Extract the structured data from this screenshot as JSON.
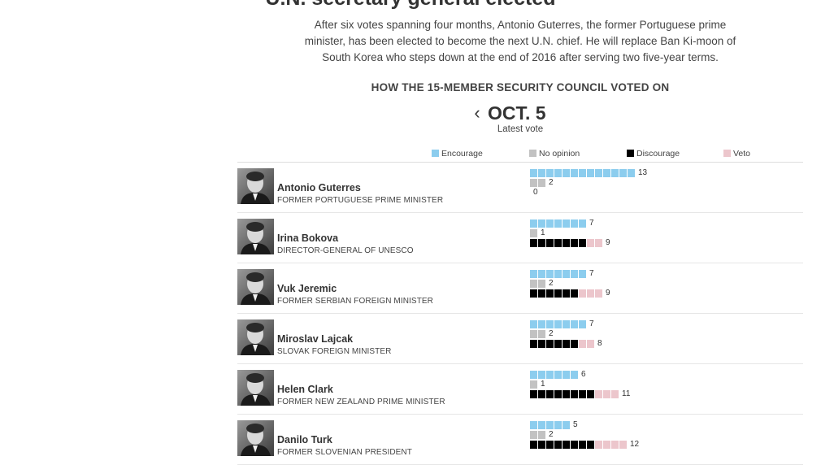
{
  "headline": "U.N. secretary general elected",
  "intro": "After six votes spanning four months, Antonio Guterres, the former Portuguese prime minister, has been elected to become the next U.N. chief. He will replace Ban Ki-moon of South Korea who steps down at the end of 2016 after serving two five-year terms.",
  "council_heading": "HOW THE 15-MEMBER SECURITY COUNCIL VOTED ON",
  "vote_date": "OCT. 5",
  "vote_subtitle": "Latest vote",
  "colors": {
    "encourage": "#8ccdee",
    "no_opinion": "#c2c2c2",
    "discourage": "#000000",
    "veto": "#ecc6cc"
  },
  "legend": {
    "encourage": "Encourage",
    "no_opinion": "No opinion",
    "discourage": "Discourage",
    "veto": "Veto"
  },
  "chart_data": {
    "type": "bar",
    "title": "HOW THE 15-MEMBER SECURITY COUNCIL VOTED ON",
    "subtitle": "OCT. 5",
    "series_order": [
      "encourage",
      "no_opinion",
      "discourage_veto"
    ],
    "candidates": [
      {
        "name": "Antonio Guterres",
        "role": "FORMER PORTUGUESE PRIME MINISTER",
        "encourage": 13,
        "no_opinion": 2,
        "discourage": 0,
        "veto": 0,
        "discourage_veto_total": 0,
        "photo_icon": "portrait-icon"
      },
      {
        "name": "Irina Bokova",
        "role": "DIRECTOR-GENERAL OF UNESCO",
        "encourage": 7,
        "no_opinion": 1,
        "discourage": 7,
        "veto": 2,
        "discourage_veto_total": 9,
        "photo_icon": "portrait-icon"
      },
      {
        "name": "Vuk Jeremic",
        "role": "FORMER SERBIAN FOREIGN MINISTER",
        "encourage": 7,
        "no_opinion": 2,
        "discourage": 6,
        "veto": 3,
        "discourage_veto_total": 9,
        "photo_icon": "portrait-icon"
      },
      {
        "name": "Miroslav Lajcak",
        "role": "SLOVAK FOREIGN MINISTER",
        "encourage": 7,
        "no_opinion": 2,
        "discourage": 6,
        "veto": 2,
        "discourage_veto_total": 8,
        "photo_icon": "portrait-icon"
      },
      {
        "name": "Helen Clark",
        "role": "FORMER NEW ZEALAND PRIME MINISTER",
        "encourage": 6,
        "no_opinion": 1,
        "discourage": 8,
        "veto": 3,
        "discourage_veto_total": 11,
        "photo_icon": "portrait-icon"
      },
      {
        "name": "Danilo Turk",
        "role": "FORMER SLOVENIAN PRESIDENT",
        "encourage": 5,
        "no_opinion": 2,
        "discourage": 8,
        "veto": 4,
        "discourage_veto_total": 12,
        "photo_icon": "portrait-icon"
      }
    ]
  }
}
